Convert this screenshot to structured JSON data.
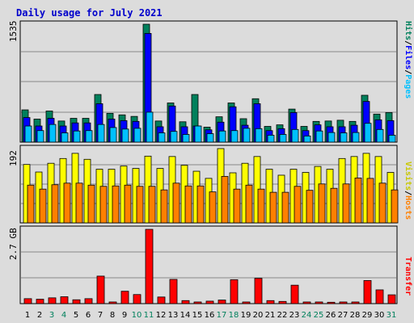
{
  "chart_data": {
    "type": "bar",
    "title": "Daily usage for July 2021",
    "categories": [
      "1",
      "2",
      "3",
      "4",
      "5",
      "6",
      "7",
      "8",
      "9",
      "10",
      "11",
      "12",
      "13",
      "14",
      "15",
      "16",
      "17",
      "18",
      "19",
      "20",
      "21",
      "22",
      "23",
      "24",
      "25",
      "26",
      "27",
      "28",
      "29",
      "30",
      "31"
    ],
    "weekend_days": [
      "3",
      "4",
      "10",
      "11",
      "17",
      "18",
      "24",
      "25",
      "31"
    ],
    "panels": [
      {
        "id": "hits-files-pages",
        "axis_max_label": "1535",
        "side_labels": [
          {
            "text": "Hits",
            "color": "#00805c"
          },
          {
            "text": "/",
            "color": "#000000"
          },
          {
            "text": "Files",
            "color": "#0000ff"
          },
          {
            "text": "/",
            "color": "#000000"
          },
          {
            "text": "Pages",
            "color": "#00c0ff"
          }
        ],
        "series": [
          {
            "name": "Hits",
            "color": "#00805c",
            "values": [
              420,
              300,
              405,
              275,
              310,
              310,
              620,
              375,
              355,
              335,
              1535,
              275,
              510,
              265,
              620,
              195,
              330,
              510,
              305,
              565,
              205,
              225,
              430,
              205,
              270,
              275,
              285,
              270,
              610,
              365,
              385
            ]
          },
          {
            "name": "Files",
            "color": "#0000ff",
            "values": [
              320,
              210,
              310,
              210,
              250,
              250,
              500,
              300,
              280,
              270,
              1415,
              200,
              470,
              200,
              210,
              160,
              260,
              460,
              220,
              500,
              150,
              175,
              385,
              150,
              225,
              200,
              200,
              220,
              530,
              290,
              280
            ]
          },
          {
            "name": "Pages",
            "color": "#00c0ff",
            "values": [
              210,
              150,
              230,
              120,
              145,
              150,
              230,
              190,
              170,
              180,
              390,
              120,
              140,
              100,
              210,
              110,
              145,
              150,
              180,
              175,
              90,
              100,
              165,
              80,
              145,
              125,
              120,
              125,
              245,
              165,
              90
            ]
          }
        ]
      },
      {
        "id": "visits-hosts",
        "axis_max_label": "192",
        "side_labels": [
          {
            "text": "Visits",
            "color": "#c8c800"
          },
          {
            "text": "/",
            "color": "#000000"
          },
          {
            "text": "Hosts",
            "color": "#ff8000"
          }
        ],
        "series": [
          {
            "name": "Visits",
            "color": "#ffff00",
            "values": [
              147,
              128,
              150,
              162,
              175,
              160,
              135,
              135,
              143,
              137,
              168,
              137,
              167,
              145,
              130,
              112,
              187,
              126,
              150,
              167,
              135,
              120,
              135,
              127,
              142,
              135,
              162,
              167,
              175,
              167,
              127
            ]
          },
          {
            "name": "Hosts",
            "color": "#ff8000",
            "values": [
              95,
              85,
              96,
              100,
              100,
              95,
              92,
              93,
              95,
              92,
              92,
              83,
              100,
              93,
              93,
              78,
              117,
              85,
              95,
              85,
              77,
              77,
              92,
              82,
              98,
              87,
              98,
              113,
              112,
              100,
              83
            ]
          }
        ]
      },
      {
        "id": "transfer",
        "axis_max_label": "2.7 GB",
        "side_labels": [
          {
            "text": "Transfer",
            "color": "#ff0000"
          }
        ],
        "series": [
          {
            "name": "Transfer",
            "color": "#ff0000",
            "values": [
              0.18,
              0.16,
              0.21,
              0.25,
              0.14,
              0.18,
              1.0,
              0.06,
              0.45,
              0.33,
              2.7,
              0.24,
              0.88,
              0.11,
              0.06,
              0.09,
              0.13,
              0.87,
              0.06,
              0.92,
              0.11,
              0.08,
              0.67,
              0.06,
              0.06,
              0.05,
              0.06,
              0.06,
              0.84,
              0.5,
              0.32
            ]
          }
        ]
      }
    ]
  }
}
